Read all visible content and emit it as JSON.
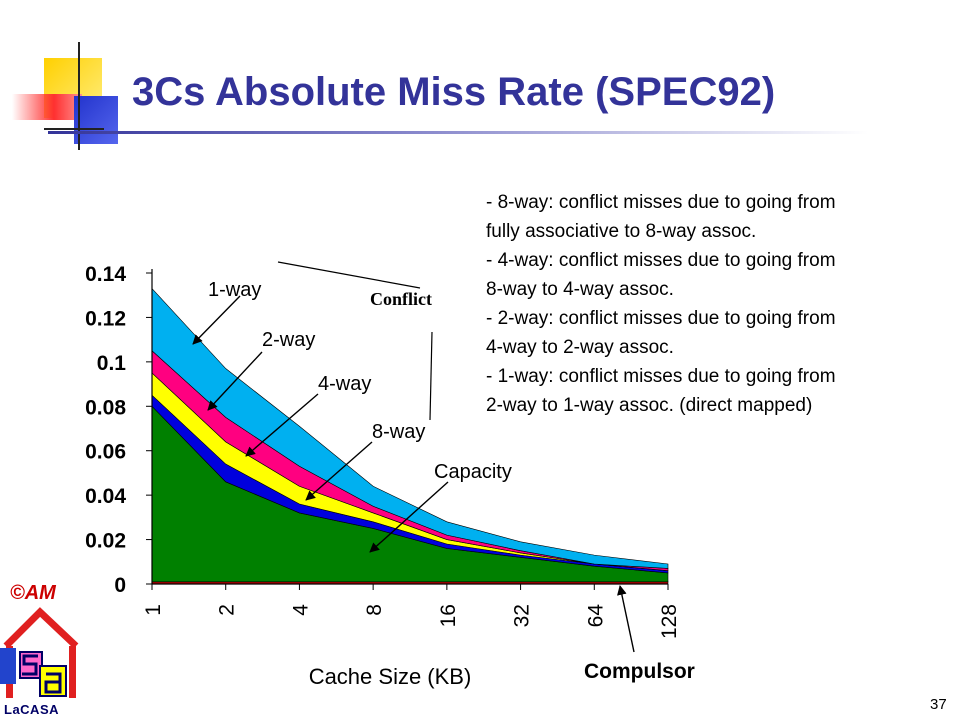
{
  "slide": {
    "title": "3Cs Absolute Miss Rate (SPEC92)",
    "notes": [
      "- 8-way: conflict misses due to going from",
      "fully associative to 8-way assoc.",
      "- 4-way: conflict misses due to going from",
      "8-way to 4-way assoc.",
      "- 2-way: conflict misses due to going from",
      "4-way to 2-way assoc.",
      "- 1-way: conflict misses due to going from",
      "2-way to 1-way assoc. (direct mapped)"
    ],
    "copyright": "©AM",
    "logo_text": "LaCASA",
    "page_number": "37"
  },
  "chart_data": {
    "type": "area",
    "xlabel": "Cache Size (KB)",
    "ylabel": "",
    "categories": [
      "1",
      "2",
      "4",
      "8",
      "16",
      "32",
      "64",
      "128"
    ],
    "yticks": [
      "0",
      "0.02",
      "0.04",
      "0.06",
      "0.08",
      "0.1",
      "0.12",
      "0.14"
    ],
    "ylim": [
      0,
      0.14
    ],
    "grid": false,
    "stack_order": [
      "Compulsory",
      "Capacity",
      "8-way",
      "4-way",
      "2-way",
      "1-way"
    ],
    "series": [
      {
        "key": "compulsory",
        "color": "#c00000",
        "values": [
          0.001,
          0.001,
          0.001,
          0.001,
          0.001,
          0.001,
          0.001,
          0.001
        ]
      },
      {
        "key": "capacity",
        "color": "#008000",
        "values": [
          0.079,
          0.045,
          0.031,
          0.024,
          0.015,
          0.011,
          0.007,
          0.004
        ]
      },
      {
        "key": "8way",
        "color": "#0000dd",
        "values": [
          0.005,
          0.008,
          0.004,
          0.003,
          0.002,
          0.001,
          0.001,
          0.001
        ]
      },
      {
        "key": "4way",
        "color": "#ffff00",
        "values": [
          0.01,
          0.01,
          0.008,
          0.004,
          0.002,
          0.001,
          0.0,
          0.0
        ]
      },
      {
        "key": "2way",
        "color": "#ff0080",
        "values": [
          0.01,
          0.011,
          0.009,
          0.003,
          0.002,
          0.001,
          0.0,
          0.001
        ]
      },
      {
        "key": "1way",
        "color": "#00b0f0",
        "values": [
          0.028,
          0.022,
          0.018,
          0.009,
          0.006,
          0.004,
          0.004,
          0.002
        ]
      }
    ],
    "annotations": {
      "1way": "1-way",
      "2way": "2-way",
      "4way": "4-way",
      "8way": "8-way",
      "capacity": "Capacity",
      "compulsory": "Compulsor",
      "conflict": "Conflict"
    }
  }
}
